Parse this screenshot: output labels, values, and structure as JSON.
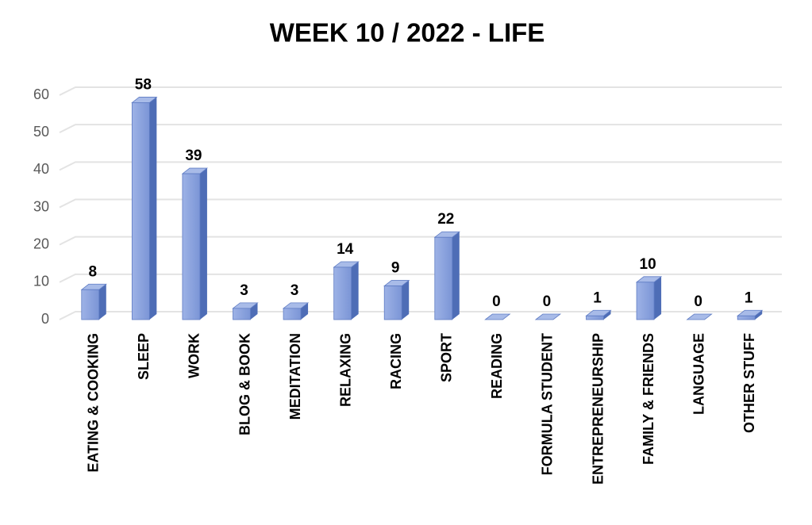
{
  "chart_data": {
    "type": "bar3d",
    "title": "WEEK 10 / 2022 - LIFE",
    "categories": [
      "EATING & COOKING",
      "SLEEP",
      "WORK",
      "BLOG & BOOK",
      "MEDITATION",
      "RELAXING",
      "RACING",
      "SPORT",
      "READING",
      "FORMULA STUDENT",
      "ENTREPRENEURSHIP",
      "FAMILY & FRIENDS",
      "LANGUAGE",
      "OTHER STUFF"
    ],
    "values": [
      8,
      58,
      39,
      3,
      3,
      14,
      9,
      22,
      0,
      0,
      1,
      10,
      0,
      1
    ],
    "color": "#7f98d8",
    "ylim": [
      0,
      60
    ],
    "yticks": [
      0,
      10,
      20,
      30,
      40,
      50,
      60
    ],
    "grid": true
  }
}
